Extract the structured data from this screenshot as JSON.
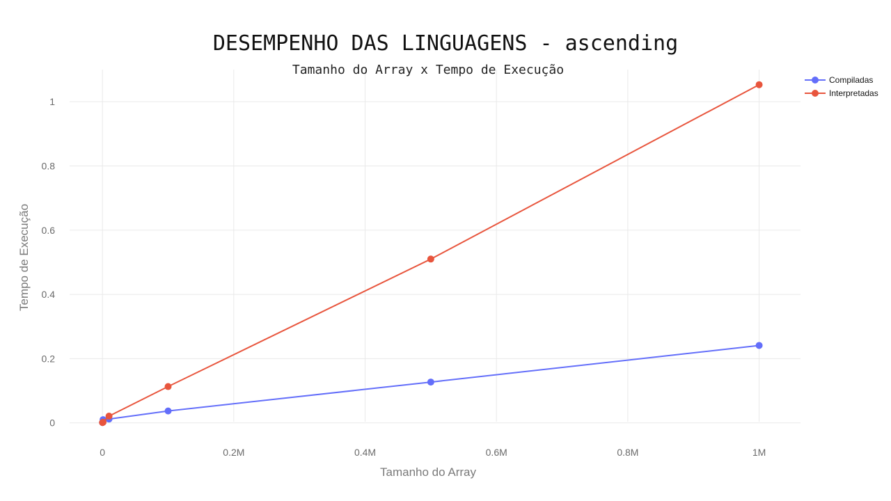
{
  "chart_data": {
    "type": "line",
    "title": "DESEMPENHO DAS LINGUAGENS - ascending",
    "subtitle": "Tamanho do Array x Tempo de Execução",
    "xlabel": "Tamanho do Array",
    "ylabel": "Tempo de Execução",
    "xlim": [
      -50000,
      1063000
    ],
    "ylim": [
      -0.07,
      1.1
    ],
    "x_ticks": [
      0,
      200000,
      400000,
      600000,
      800000,
      1000000
    ],
    "x_tick_labels": [
      "0",
      "0.2M",
      "0.4M",
      "0.6M",
      "0.8M",
      "1M"
    ],
    "y_ticks": [
      0,
      0.2,
      0.4,
      0.6,
      0.8,
      1
    ],
    "y_tick_labels": [
      "0",
      "0.2",
      "0.4",
      "0.6",
      "0.8",
      "1"
    ],
    "grid": true,
    "legend_position": "top-right",
    "series": [
      {
        "name": "Compiladas",
        "color": "#636efa",
        "x": [
          100,
          1000,
          10000,
          100000,
          500000,
          1000000
        ],
        "y": [
          0.001,
          0.01,
          0.012,
          0.037,
          0.127,
          0.241
        ]
      },
      {
        "name": "Interpretadas",
        "color": "#e8553d",
        "x": [
          100,
          1000,
          10000,
          100000,
          500000,
          1000000
        ],
        "y": [
          0.001,
          0.002,
          0.021,
          0.113,
          0.51,
          1.053
        ]
      }
    ]
  }
}
